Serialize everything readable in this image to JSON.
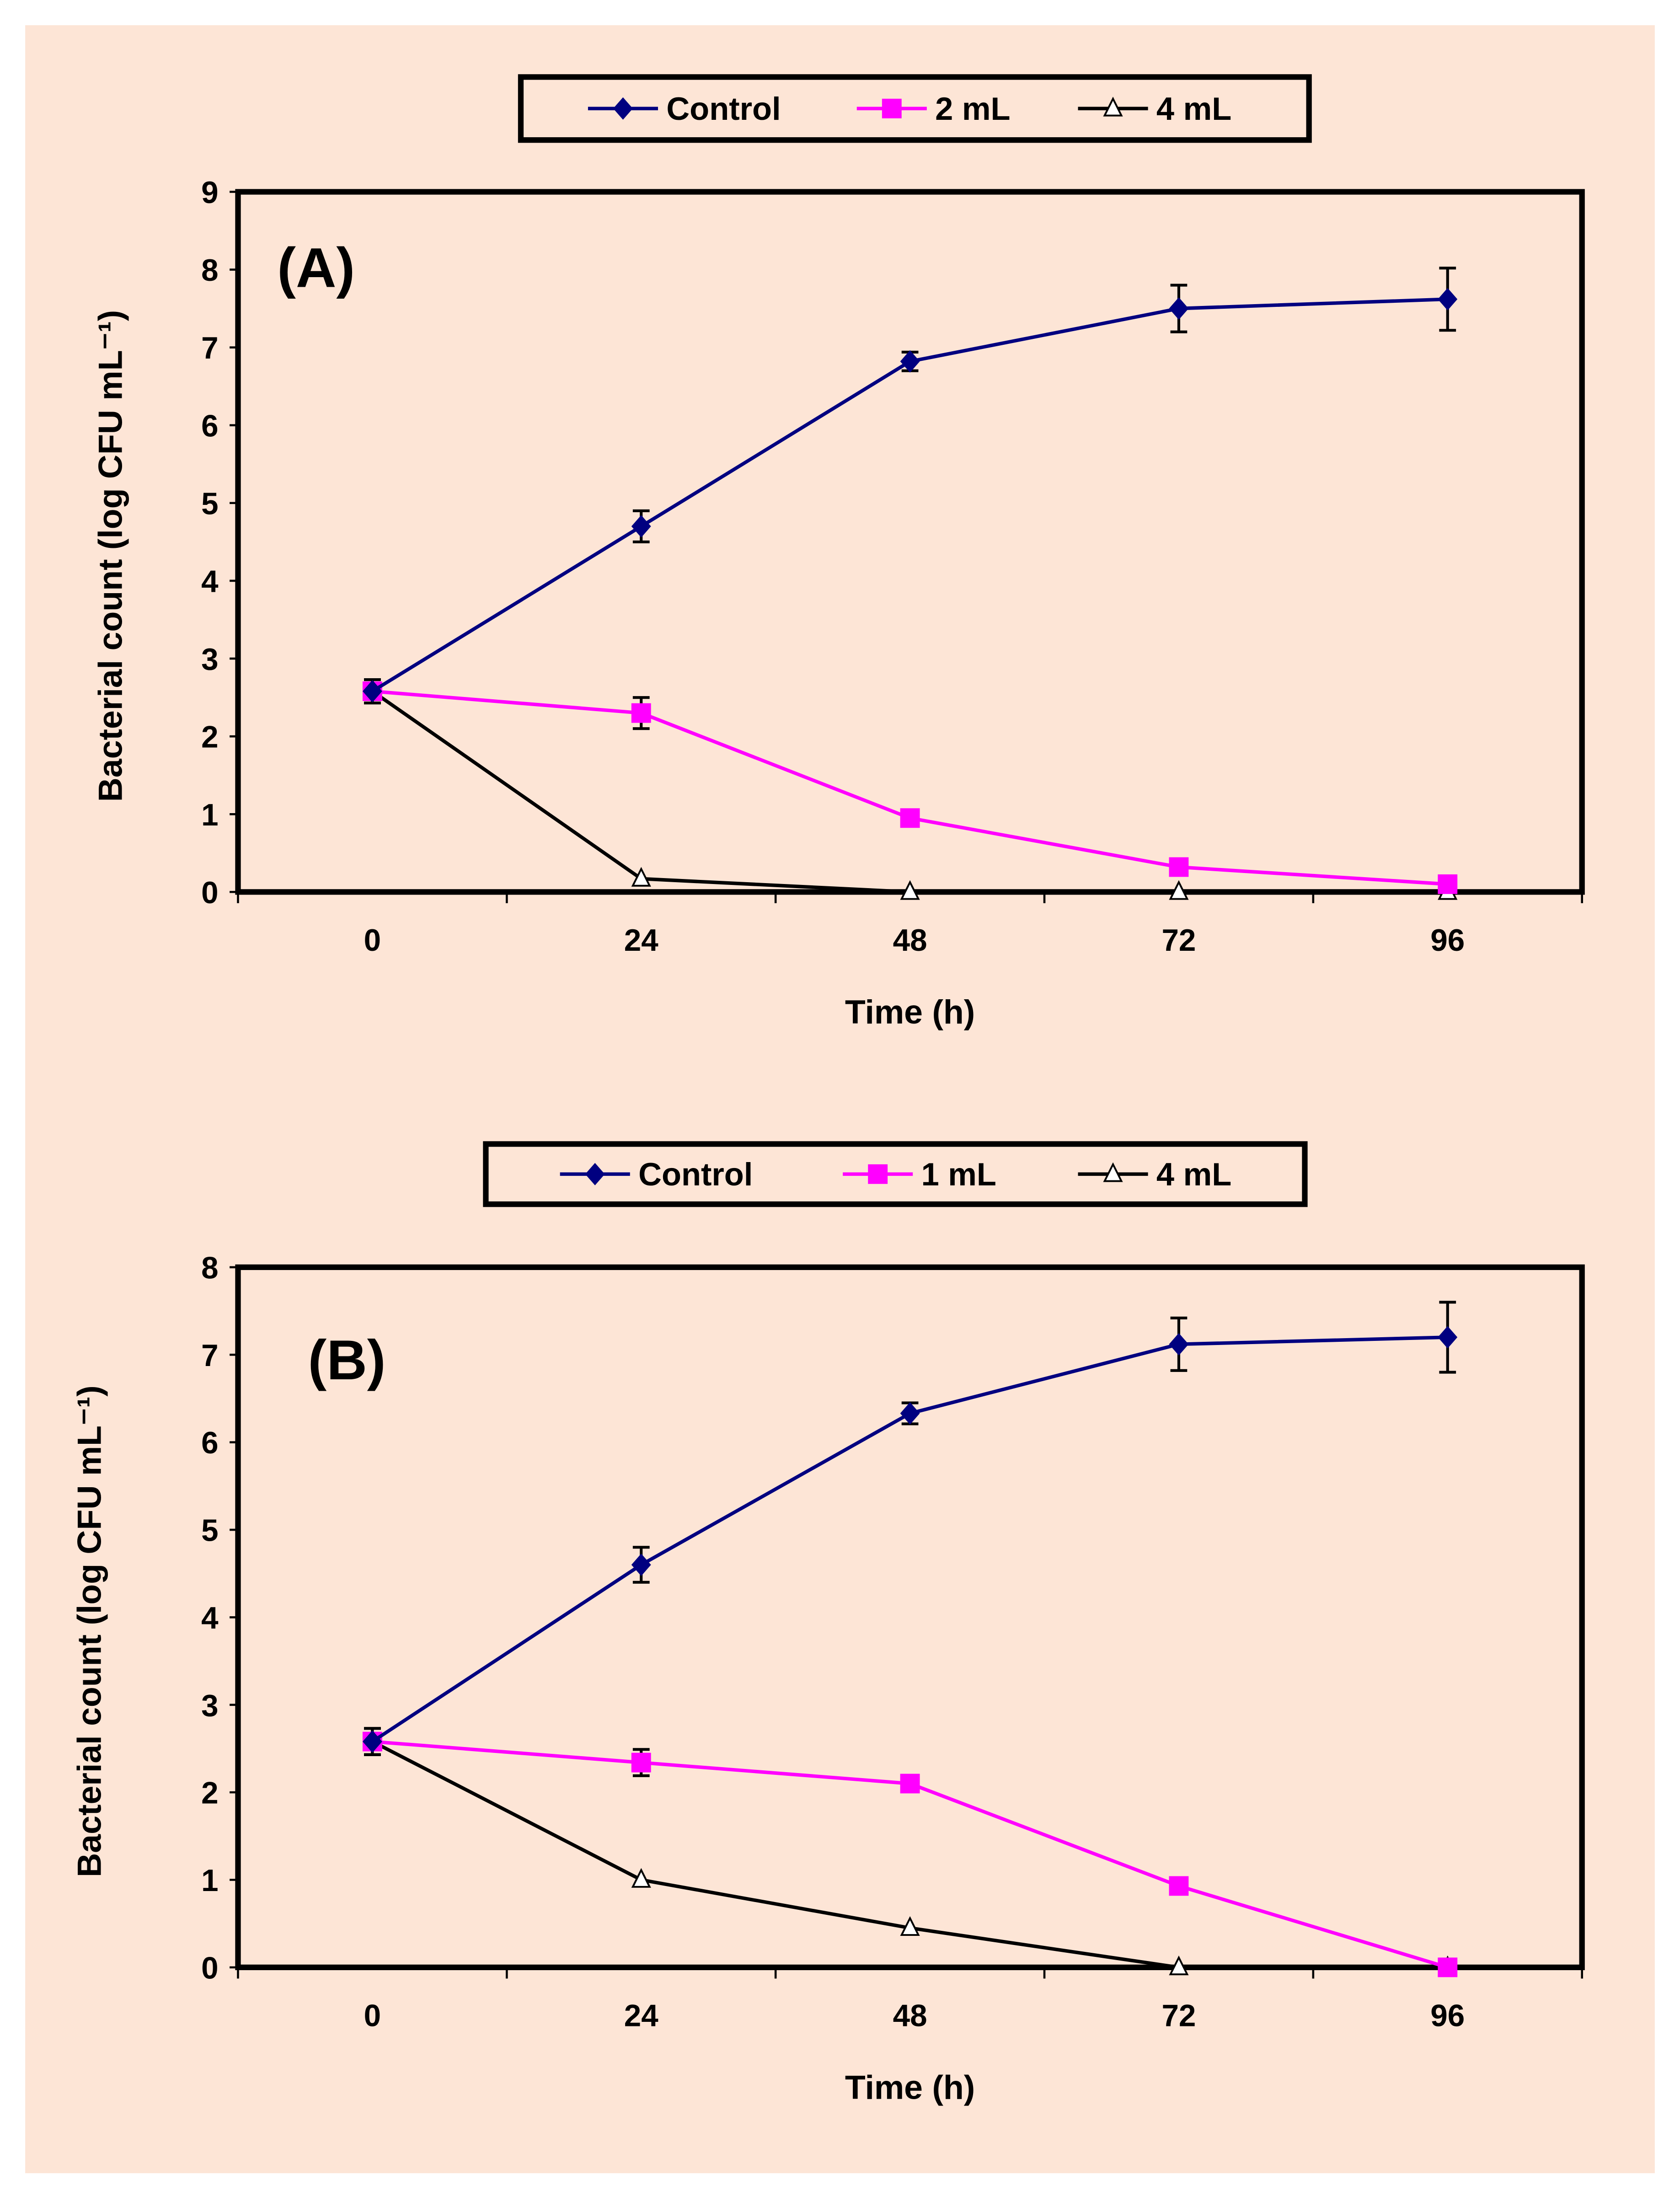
{
  "colors": {
    "background": "#fde5d6",
    "control": "#000080",
    "mid": "#ff00ff",
    "high": "#000000"
  },
  "chart_data": [
    {
      "type": "line",
      "panel_label": "(A)",
      "xlabel": "Time (h)",
      "ylabel": "Bacterial count (log CFU mL⁻¹)",
      "categories": [
        "0",
        "24",
        "48",
        "72",
        "96"
      ],
      "ylim": [
        0,
        9
      ],
      "yticks": [
        "0",
        "1",
        "2",
        "3",
        "4",
        "5",
        "6",
        "7",
        "8",
        "9"
      ],
      "legend_position": "top-center",
      "series": [
        {
          "name": "Control",
          "marker": "diamond",
          "color": "#000080",
          "values": [
            2.58,
            4.7,
            6.82,
            7.5,
            7.62
          ],
          "errors": [
            0.15,
            0.2,
            0.12,
            0.3,
            0.4
          ]
        },
        {
          "name": "2 mL",
          "marker": "square",
          "color": "#ff00ff",
          "values": [
            2.58,
            2.3,
            0.95,
            0.32,
            0.1
          ],
          "errors": [
            0.15,
            0.2,
            0.05,
            0.05,
            0.03
          ]
        },
        {
          "name": "4 mL",
          "marker": "triangle",
          "color": "#000000",
          "values": [
            2.58,
            0.17,
            0,
            0,
            0
          ],
          "errors": [
            0.15,
            0.02,
            0,
            0,
            0
          ]
        }
      ]
    },
    {
      "type": "line",
      "panel_label": "(B)",
      "xlabel": "Time (h)",
      "ylabel": "Bacterial count (log CFU mL⁻¹)",
      "categories": [
        "0",
        "24",
        "48",
        "72",
        "96"
      ],
      "ylim": [
        0,
        8
      ],
      "yticks": [
        "0",
        "1",
        "2",
        "3",
        "4",
        "5",
        "6",
        "7",
        "8"
      ],
      "legend_position": "top-center",
      "series": [
        {
          "name": "Control",
          "marker": "diamond",
          "color": "#000080",
          "values": [
            2.58,
            4.6,
            6.33,
            7.12,
            7.2
          ],
          "errors": [
            0.15,
            0.2,
            0.12,
            0.3,
            0.4
          ]
        },
        {
          "name": "1 mL",
          "marker": "square",
          "color": "#ff00ff",
          "values": [
            2.58,
            2.34,
            2.1,
            0.93,
            0
          ],
          "errors": [
            0.15,
            0.15,
            0.05,
            0.05,
            0
          ]
        },
        {
          "name": "4 mL",
          "marker": "triangle",
          "color": "#000000",
          "values": [
            2.58,
            1.0,
            0.45,
            0,
            0
          ],
          "errors": [
            0.15,
            0.03,
            0.03,
            0,
            0
          ]
        }
      ]
    }
  ]
}
